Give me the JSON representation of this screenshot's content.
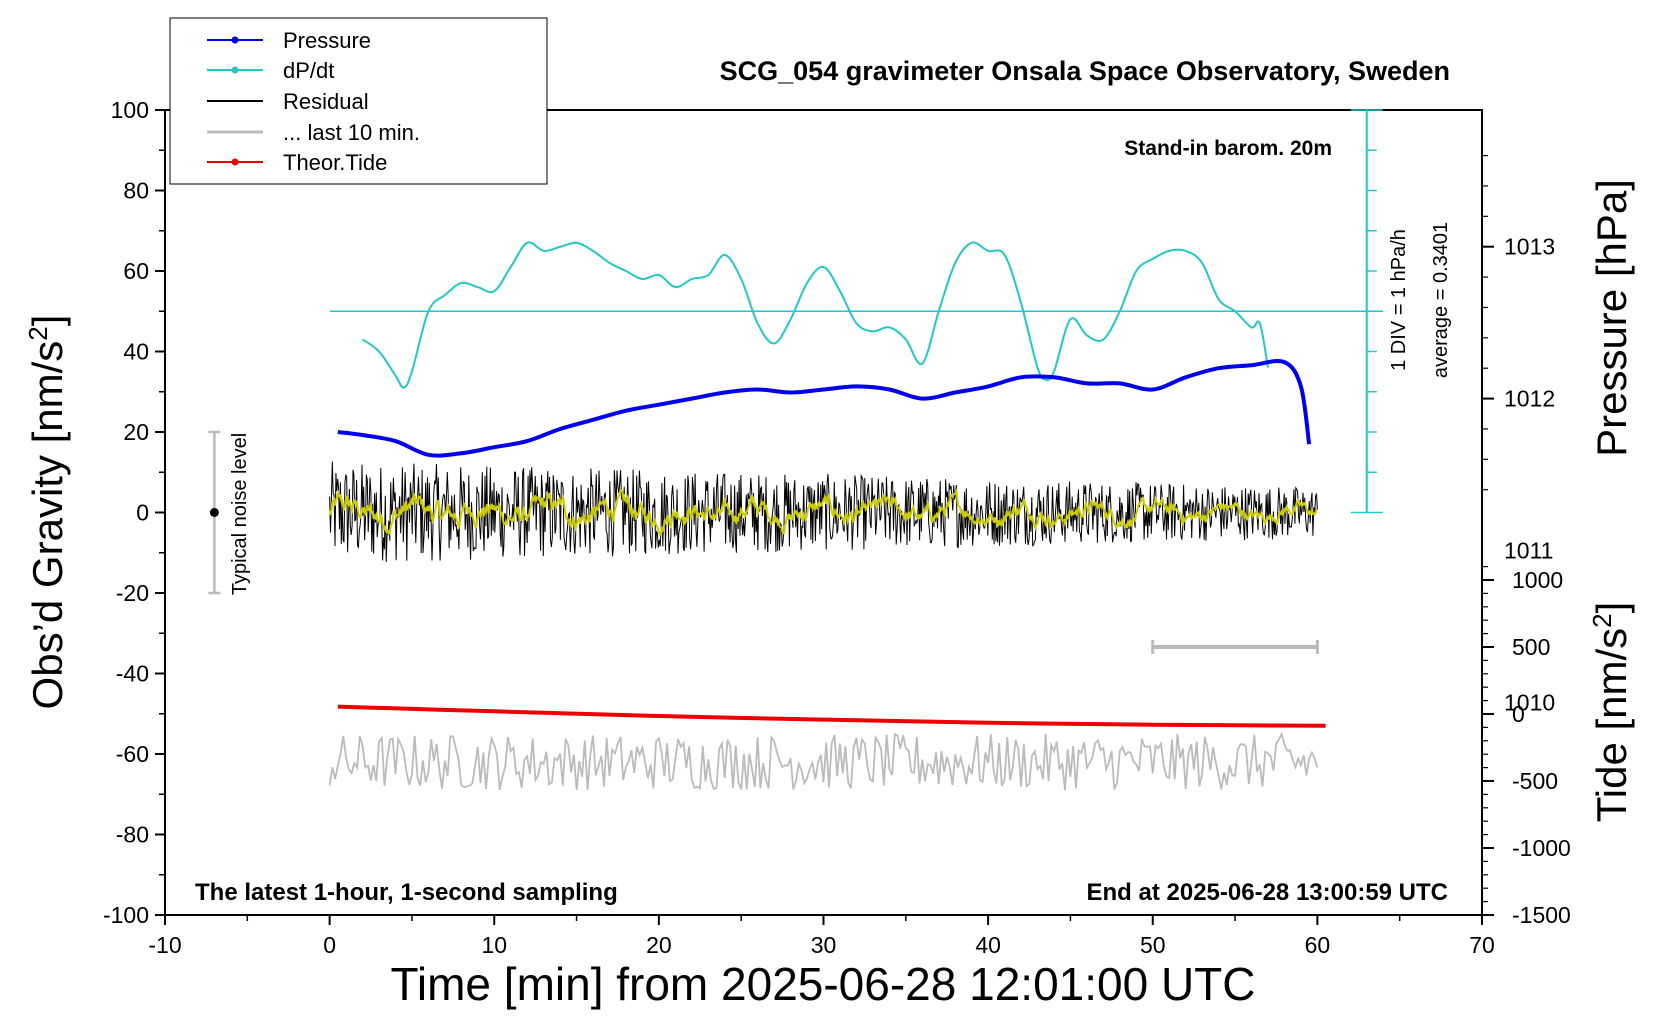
{
  "chart_data": {
    "type": "line",
    "title": "SCG_054 gravimeter Onsala Space Observatory, Sweden",
    "xlabel": "Time [min] from 2025-06-28 12:01:00 UTC",
    "ylabel_left": "Obs’d Gravity [nm/s",
    "ylabel_left_sup": "2",
    "ylabel_left_tail": "]",
    "ylabel_right_pressure": "Pressure [hPa]",
    "ylabel_right_tide": "Tide [nm/s",
    "ylabel_right_tide_sup": "2",
    "ylabel_right_tide_tail": "]",
    "xlim": [
      -10,
      70
    ],
    "ylim": [
      -100,
      100
    ],
    "pressure_lim": [
      1008.6,
      1013.9
    ],
    "tide_lim": [
      -1500,
      1500
    ],
    "x_ticks": [
      "-10",
      "0",
      "10",
      "20",
      "30",
      "40",
      "50",
      "60",
      "70"
    ],
    "y_ticks": [
      "100",
      "80",
      "60",
      "40",
      "20",
      "0",
      "-20",
      "-40",
      "-60",
      "-80",
      "-100"
    ],
    "pressure_ticks": [
      "1013",
      "1012",
      "1011",
      "1010"
    ],
    "tide_ticks": [
      "1000",
      "500",
      "0",
      "-500",
      "-1000",
      "-1500"
    ],
    "legend": [
      "Pressure",
      "dP/dt",
      "Residual",
      "... last 10 min.",
      "Theor.Tide"
    ],
    "annotations": {
      "barometer": "Stand-in barom. 20m",
      "div": "1 DIV = 1 hPa/h",
      "average": "average = 0.3401",
      "noise": "Typical noise level",
      "footer_left": "The latest 1-hour, 1-second sampling",
      "footer_right": "End at 2025-06-28 13:00:59 UTC"
    },
    "colors": {
      "pressure": "#0000ee",
      "dpdt": "#22c7c7",
      "residual": "#000000",
      "residual_smooth": "#cccc00",
      "last10": "#bbbbbb",
      "tide": "#ee0000"
    },
    "series": [
      {
        "name": "Pressure",
        "unit": "hPa",
        "x": [
          0.5,
          2,
          4,
          6,
          8,
          10,
          12,
          14,
          16,
          18,
          20,
          22,
          24,
          26,
          28,
          30,
          32,
          34,
          36,
          38,
          40,
          42,
          44,
          46,
          48,
          50,
          52,
          54,
          56,
          58,
          59,
          59.5
        ],
        "y": [
          1011.78,
          1011.76,
          1011.72,
          1011.63,
          1011.64,
          1011.68,
          1011.72,
          1011.8,
          1011.86,
          1011.92,
          1011.96,
          1012.0,
          1012.04,
          1012.06,
          1012.04,
          1012.06,
          1012.08,
          1012.06,
          1012.0,
          1012.04,
          1012.08,
          1012.14,
          1012.14,
          1012.1,
          1012.1,
          1012.06,
          1012.14,
          1012.2,
          1012.22,
          1012.24,
          1012.08,
          1011.7
        ]
      },
      {
        "name": "dP/dt",
        "unit": "nm/s2 scale",
        "x": [
          2,
          3,
          4,
          4.5,
          5,
          6,
          7,
          8,
          9,
          10,
          11,
          12,
          13,
          14,
          15,
          16,
          17,
          18,
          19,
          20,
          21,
          22,
          23,
          24,
          25,
          26,
          27,
          28,
          29,
          30,
          31,
          32,
          33,
          34,
          35,
          36,
          37,
          38,
          39,
          40,
          41,
          42,
          43,
          43.5,
          44,
          45,
          46,
          47,
          48,
          49,
          50,
          51,
          52,
          53,
          54,
          55,
          56,
          56.5,
          57
        ],
        "y": [
          43,
          40,
          34,
          31,
          35,
          50,
          54,
          57,
          56,
          55,
          61,
          67,
          65,
          66,
          67,
          65,
          62,
          60,
          58,
          59,
          56,
          58,
          59,
          64,
          58,
          47,
          42,
          48,
          57,
          61,
          55,
          47,
          45,
          46,
          43,
          37,
          50,
          62,
          67,
          65,
          64,
          52,
          36,
          33,
          35,
          48,
          44,
          43,
          50,
          60,
          63,
          65,
          65,
          62,
          53,
          50,
          46,
          47,
          36
        ]
      },
      {
        "name": "dP/dt average",
        "y": [
          50
        ]
      },
      {
        "name": "Residual",
        "x_range": [
          0,
          60
        ],
        "amplitude_start": 8,
        "amplitude_end": 4,
        "mean": 0
      },
      {
        "name": "... last 10 min.",
        "x_range": [
          0,
          60
        ],
        "center": -62,
        "amplitude": 5
      },
      {
        "name": "Theor.Tide",
        "unit": "nm/s2",
        "x": [
          0.5,
          10,
          20,
          30,
          40,
          50,
          60.5
        ],
        "y": [
          55,
          20,
          -15,
          -42,
          -65,
          -80,
          -88
        ]
      }
    ],
    "dpdt_scale": {
      "x": 63,
      "y_range": [
        0,
        100
      ],
      "div_ticks": 9
    },
    "noise_bar": {
      "x": -7,
      "y_range": [
        -20,
        20
      ],
      "center": 0
    },
    "last10_bar": {
      "x_range": [
        50,
        60
      ],
      "tide_y": 500
    }
  }
}
